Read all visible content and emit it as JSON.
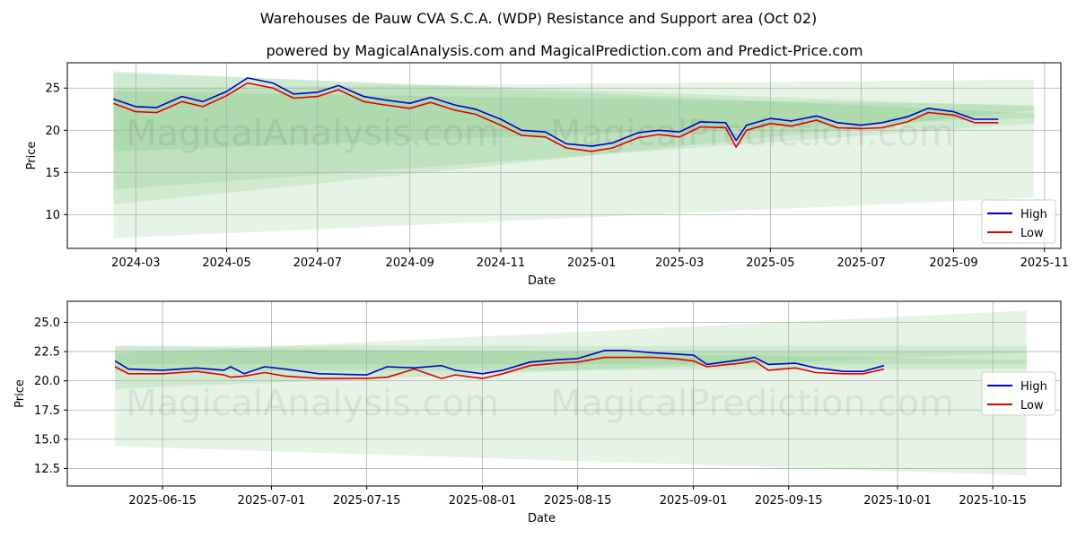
{
  "title": "Warehouses de Pauw CVA S.C.A. (WDP) Resistance and Support area (Oct 02)",
  "subtitle": "powered by MagicalAnalysis.com and MagicalPrediction.com and Predict-Price.com",
  "watermark_left": "MagicalAnalysis.com",
  "watermark_right": "MagicalPrediction.com",
  "colors": {
    "high": "#0000cc",
    "low": "#e00000",
    "band": "#4caf50",
    "grid": "#b0b0b0"
  },
  "chart_data": [
    {
      "type": "line",
      "xlabel": "Date",
      "ylabel": "Price",
      "x_ticks": [
        "2024-03",
        "2024-05",
        "2024-07",
        "2024-09",
        "2024-11",
        "2025-01",
        "2025-03",
        "2025-05",
        "2025-07",
        "2025-09",
        "2025-11"
      ],
      "y_ticks": [
        "10",
        "15",
        "20",
        "25"
      ],
      "ylim": [
        6,
        28
      ],
      "grid": true,
      "legend_position": "lower right",
      "legend": [
        "High",
        "Low"
      ],
      "series": [
        {
          "name": "High",
          "x": [
            "2024-02-15",
            "2024-03-01",
            "2024-03-15",
            "2024-04-01",
            "2024-04-15",
            "2024-05-01",
            "2024-05-15",
            "2024-06-01",
            "2024-06-15",
            "2024-07-01",
            "2024-07-15",
            "2024-08-01",
            "2024-08-15",
            "2024-09-01",
            "2024-09-15",
            "2024-10-01",
            "2024-10-15",
            "2024-11-01",
            "2024-11-15",
            "2024-12-01",
            "2024-12-15",
            "2025-01-01",
            "2025-01-15",
            "2025-02-01",
            "2025-02-15",
            "2025-03-01",
            "2025-03-15",
            "2025-04-01",
            "2025-04-08",
            "2025-04-15",
            "2025-05-01",
            "2025-05-15",
            "2025-06-01",
            "2025-06-15",
            "2025-07-01",
            "2025-07-15",
            "2025-08-01",
            "2025-08-15",
            "2025-09-01",
            "2025-09-15",
            "2025-10-01"
          ],
          "values": [
            23.7,
            22.8,
            22.7,
            24.0,
            23.4,
            24.6,
            26.2,
            25.6,
            24.3,
            24.5,
            25.3,
            24.0,
            23.6,
            23.2,
            23.9,
            23.0,
            22.5,
            21.3,
            20.0,
            19.8,
            18.4,
            18.1,
            18.5,
            19.7,
            20.0,
            19.8,
            21.0,
            20.9,
            18.8,
            20.6,
            21.4,
            21.1,
            21.7,
            20.9,
            20.6,
            20.9,
            21.6,
            22.6,
            22.2,
            21.3,
            21.3
          ]
        },
        {
          "name": "Low",
          "x": [
            "2024-02-15",
            "2024-03-01",
            "2024-03-15",
            "2024-04-01",
            "2024-04-15",
            "2024-05-01",
            "2024-05-15",
            "2024-06-01",
            "2024-06-15",
            "2024-07-01",
            "2024-07-15",
            "2024-08-01",
            "2024-08-15",
            "2024-09-01",
            "2024-09-15",
            "2024-10-01",
            "2024-10-15",
            "2024-11-01",
            "2024-11-15",
            "2024-12-01",
            "2024-12-15",
            "2025-01-01",
            "2025-01-15",
            "2025-02-01",
            "2025-02-15",
            "2025-03-01",
            "2025-03-15",
            "2025-04-01",
            "2025-04-08",
            "2025-04-15",
            "2025-05-01",
            "2025-05-15",
            "2025-06-01",
            "2025-06-15",
            "2025-07-01",
            "2025-07-15",
            "2025-08-01",
            "2025-08-15",
            "2025-09-01",
            "2025-09-15",
            "2025-10-01"
          ],
          "values": [
            23.2,
            22.2,
            22.1,
            23.4,
            22.8,
            24.1,
            25.6,
            25.0,
            23.8,
            24.0,
            24.8,
            23.4,
            23.0,
            22.6,
            23.3,
            22.4,
            21.9,
            20.6,
            19.4,
            19.2,
            17.9,
            17.5,
            17.9,
            19.1,
            19.5,
            19.2,
            20.4,
            20.3,
            18.0,
            20.0,
            20.8,
            20.5,
            21.2,
            20.3,
            20.2,
            20.3,
            21.0,
            22.1,
            21.8,
            20.9,
            20.9
          ]
        }
      ],
      "bands": [
        {
          "x": [
            "2024-02-15",
            "2025-10-25"
          ],
          "upper": [
            27.0,
            22.0
          ],
          "lower": [
            7.2,
            12.0
          ]
        },
        {
          "x": [
            "2024-02-15",
            "2025-10-25"
          ],
          "upper": [
            25.0,
            26.0
          ],
          "lower": [
            11.2,
            22.4
          ]
        },
        {
          "x": [
            "2024-02-15",
            "2025-10-25"
          ],
          "upper": [
            26.8,
            22.8
          ],
          "lower": [
            13.0,
            20.8
          ]
        },
        {
          "x": [
            "2024-02-15",
            "2025-10-25"
          ],
          "upper": [
            24.6,
            23.0
          ],
          "lower": [
            17.5,
            21.5
          ]
        }
      ]
    },
    {
      "type": "line",
      "xlabel": "Date",
      "ylabel": "Price",
      "x_ticks": [
        "2025-06-15",
        "2025-07-01",
        "2025-07-15",
        "2025-08-01",
        "2025-08-15",
        "2025-09-01",
        "2025-09-15",
        "2025-10-01",
        "2025-10-15"
      ],
      "y_ticks": [
        "12.5",
        "15.0",
        "17.5",
        "20.0",
        "22.5",
        "25.0"
      ],
      "ylim": [
        11.0,
        26.8
      ],
      "grid": true,
      "legend_position": "center right",
      "legend": [
        "High",
        "Low"
      ],
      "series": [
        {
          "name": "High",
          "x": [
            "2025-06-08",
            "2025-06-10",
            "2025-06-15",
            "2025-06-20",
            "2025-06-24",
            "2025-06-25",
            "2025-06-27",
            "2025-06-30",
            "2025-07-03",
            "2025-07-08",
            "2025-07-15",
            "2025-07-18",
            "2025-07-22",
            "2025-07-26",
            "2025-07-28",
            "2025-08-01",
            "2025-08-04",
            "2025-08-08",
            "2025-08-12",
            "2025-08-15",
            "2025-08-19",
            "2025-08-22",
            "2025-08-26",
            "2025-08-29",
            "2025-09-01",
            "2025-09-03",
            "2025-09-08",
            "2025-09-10",
            "2025-09-12",
            "2025-09-16",
            "2025-09-19",
            "2025-09-23",
            "2025-09-26",
            "2025-09-29"
          ],
          "values": [
            21.7,
            21.0,
            20.9,
            21.1,
            20.9,
            21.2,
            20.6,
            21.2,
            21.0,
            20.6,
            20.5,
            21.2,
            21.1,
            21.3,
            20.9,
            20.6,
            20.9,
            21.6,
            21.8,
            21.9,
            22.6,
            22.6,
            22.4,
            22.3,
            22.2,
            21.4,
            21.8,
            22.0,
            21.4,
            21.5,
            21.1,
            20.8,
            20.8,
            21.3
          ]
        },
        {
          "name": "Low",
          "x": [
            "2025-06-08",
            "2025-06-10",
            "2025-06-15",
            "2025-06-20",
            "2025-06-24",
            "2025-06-25",
            "2025-06-27",
            "2025-06-30",
            "2025-07-03",
            "2025-07-08",
            "2025-07-15",
            "2025-07-18",
            "2025-07-22",
            "2025-07-26",
            "2025-07-28",
            "2025-08-01",
            "2025-08-04",
            "2025-08-08",
            "2025-08-12",
            "2025-08-15",
            "2025-08-19",
            "2025-08-22",
            "2025-08-26",
            "2025-08-29",
            "2025-09-01",
            "2025-09-03",
            "2025-09-08",
            "2025-09-10",
            "2025-09-12",
            "2025-09-16",
            "2025-09-19",
            "2025-09-23",
            "2025-09-26",
            "2025-09-29"
          ],
          "values": [
            21.2,
            20.6,
            20.6,
            20.8,
            20.5,
            20.3,
            20.4,
            20.7,
            20.4,
            20.2,
            20.2,
            20.3,
            21.0,
            20.2,
            20.5,
            20.2,
            20.6,
            21.3,
            21.5,
            21.6,
            22.0,
            22.0,
            22.0,
            21.9,
            21.7,
            21.2,
            21.5,
            21.7,
            20.9,
            21.1,
            20.7,
            20.6,
            20.6,
            21.0
          ]
        }
      ],
      "bands": [
        {
          "x": [
            "2025-06-08",
            "2025-10-20"
          ],
          "upper": [
            23.0,
            21.8
          ],
          "lower": [
            14.4,
            11.9
          ]
        },
        {
          "x": [
            "2025-06-08",
            "2025-10-20"
          ],
          "upper": [
            22.3,
            26.0
          ],
          "lower": [
            19.3,
            22.4
          ]
        },
        {
          "x": [
            "2025-06-08",
            "2025-10-20"
          ],
          "upper": [
            23.0,
            23.0
          ],
          "lower": [
            20.8,
            21.0
          ]
        },
        {
          "x": [
            "2025-06-08",
            "2025-10-20"
          ],
          "upper": [
            22.6,
            22.5
          ],
          "lower": [
            21.4,
            21.4
          ]
        }
      ]
    }
  ]
}
